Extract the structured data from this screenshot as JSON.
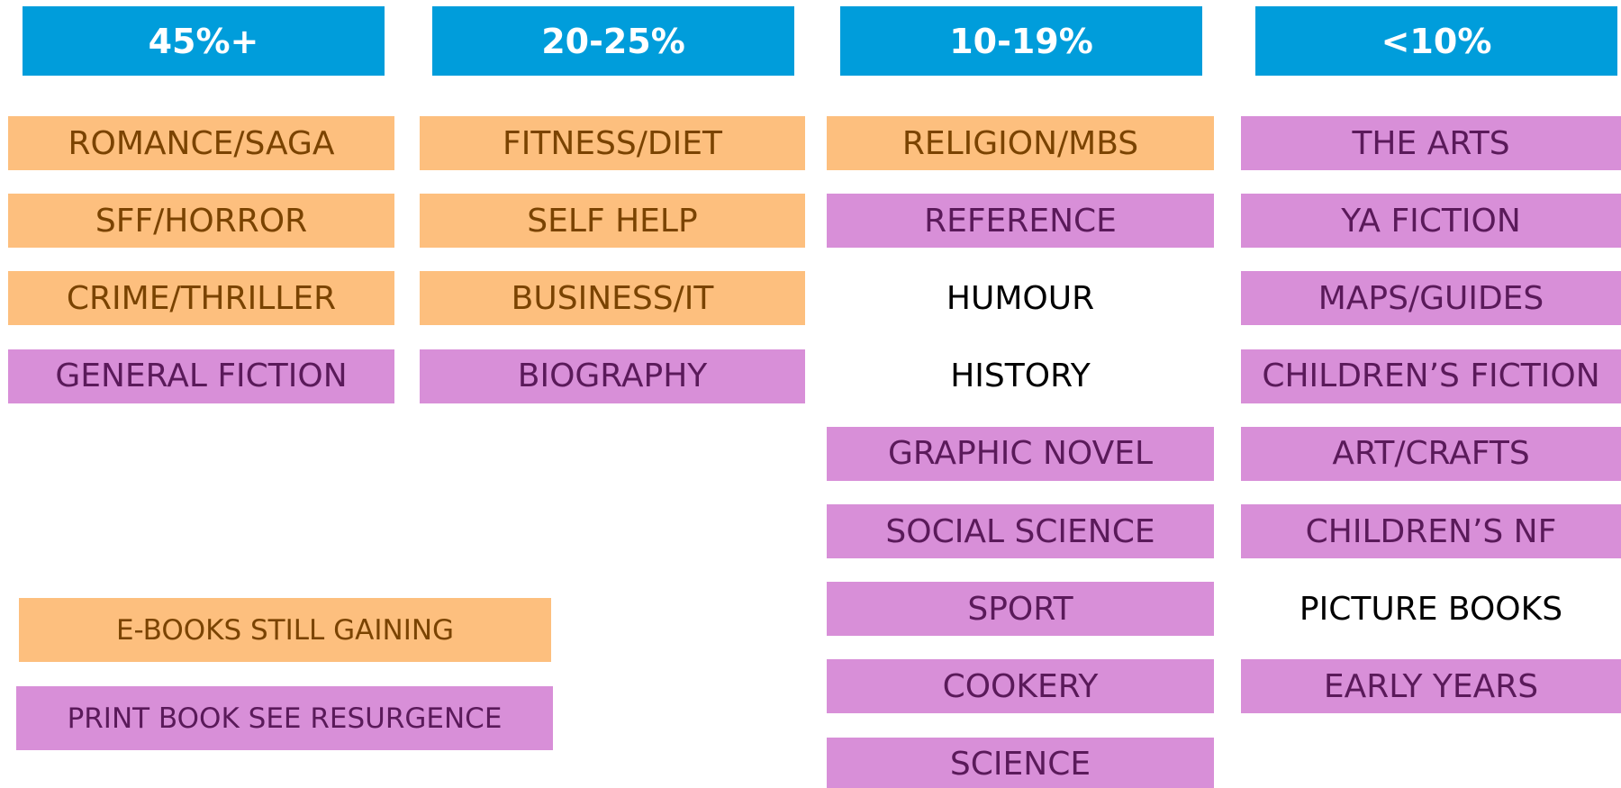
{
  "columns": [
    {
      "header": "45%+",
      "items": [
        {
          "label": "ROMANCE/SAGA",
          "color": "#fdbf7e"
        },
        {
          "label": "SFF/HORROR",
          "color": "#fdbf7e"
        },
        {
          "label": "CRIME/THRILLER",
          "color": "#fdbf7e"
        },
        {
          "label": "GENERAL FICTION",
          "color": "#d88fd8"
        }
      ]
    },
    {
      "header": "20-25%",
      "items": [
        {
          "label": "FITNESS/DIET",
          "color": "#fdbf7e"
        },
        {
          "label": "SELF HELP",
          "color": "#fdbf7e"
        },
        {
          "label": "BUSINESS/IT",
          "color": "#fdbf7e"
        },
        {
          "label": "BIOGRAPHY",
          "color": "#d88fd8"
        }
      ]
    },
    {
      "header": "10-19%",
      "items": [
        {
          "label": "RELIGION/MBS",
          "color": "#fdbf7e"
        },
        {
          "label": "REFERENCE",
          "color": "#d88fd8"
        },
        {
          "label": "HUMOUR"
        },
        {
          "label": "HISTORY"
        },
        {
          "label": "GRAPHIC NOVEL",
          "color": "#d88fd8"
        },
        {
          "label": "SOCIAL SCIENCE",
          "color": "#d88fd8"
        },
        {
          "label": "SPORT",
          "color": "#d88fd8"
        },
        {
          "label": "COOKERY",
          "color": "#d88fd8"
        },
        {
          "label": "SCIENCE",
          "color": "#d88fd8"
        }
      ]
    },
    {
      "header": "<10%",
      "items": [
        {
          "label": "THE ARTS",
          "color": "#d88fd8"
        },
        {
          "label": "YA FICTION",
          "color": "#d88fd8"
        },
        {
          "label": "MAPS/GUIDES",
          "color": "#d88fd8"
        },
        {
          "label": "CHILDREN’S FICTION",
          "color": "#d88fd8"
        },
        {
          "label": "ART/CRAFTS",
          "color": "#d88fd8"
        },
        {
          "label": "CHILDREN’S NF",
          "color": "#d88fd8"
        },
        {
          "label": "PICTURE BOOKS"
        },
        {
          "label": "EARLY YEARS",
          "color": "#d88fd8"
        }
      ]
    }
  ],
  "legend": [
    {
      "label": "E-BOOKS STILL GAINING",
      "color": "#fdbf7e"
    },
    {
      "label": "PRINT BOOK SEE RESURGENCE",
      "color": "#d88fd8"
    }
  ]
}
